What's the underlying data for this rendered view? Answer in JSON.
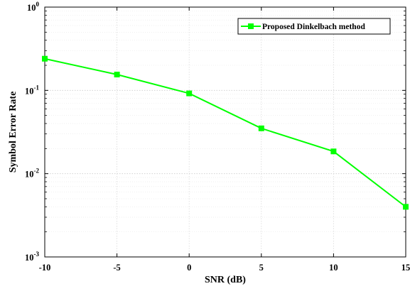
{
  "chart_data": {
    "type": "line",
    "xlabel": "SNR (dB)",
    "ylabel": "Symbol Error Rate",
    "xlim": [
      -10,
      15
    ],
    "ylim": [
      0.001,
      1
    ],
    "yscale": "log",
    "grid": true,
    "x_ticks": [
      -10,
      -5,
      0,
      5,
      10,
      15
    ],
    "x_tick_labels": [
      "-10",
      "-5",
      "0",
      "5",
      "10",
      "15"
    ],
    "y_tick_labels": [
      {
        "value": 0.001,
        "base": "10",
        "exp": "-3"
      },
      {
        "value": 0.01,
        "base": "10",
        "exp": "-2"
      },
      {
        "value": 0.1,
        "base": "10",
        "exp": "-1"
      },
      {
        "value": 1,
        "base": "10",
        "exp": "0"
      }
    ],
    "legend_position": "top-right",
    "series": [
      {
        "name": "Proposed Dinkelbach method",
        "color": "#00ff00",
        "marker": "square",
        "x": [
          -10,
          -5,
          0,
          5,
          10,
          15
        ],
        "y": [
          0.24,
          0.155,
          0.092,
          0.035,
          0.0185,
          0.004
        ]
      }
    ]
  }
}
